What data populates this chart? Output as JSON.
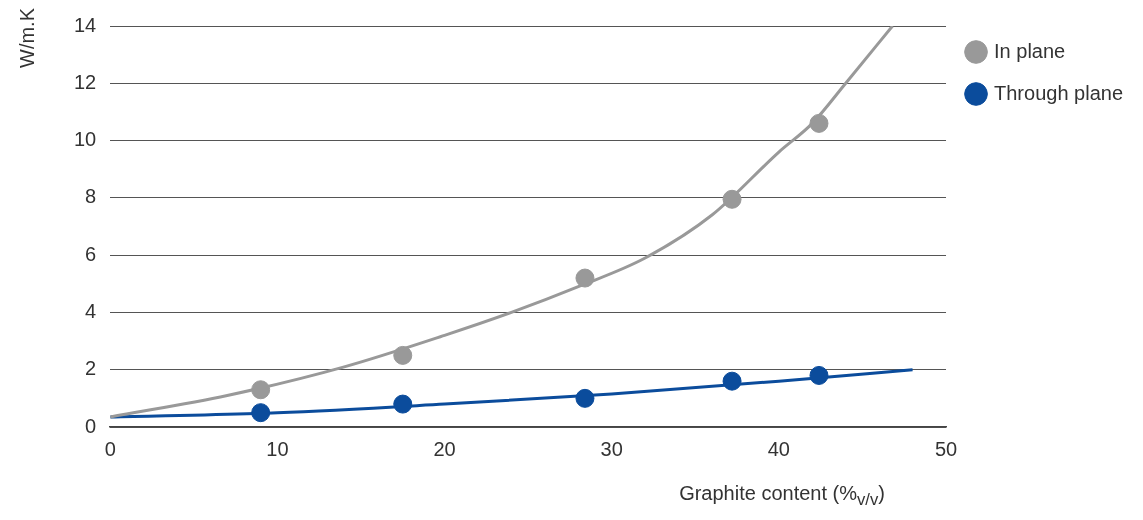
{
  "chart_data": {
    "type": "scatter",
    "xlabel": "Graphite content (%$_{v/v}$)",
    "ylabel": "W/m.K",
    "xlim": [
      0,
      50
    ],
    "xticks": [
      0,
      10,
      20,
      30,
      40,
      50
    ],
    "ylim": [
      0,
      14
    ],
    "yticks": [
      0,
      2,
      4,
      6,
      8,
      10,
      12,
      14
    ],
    "grid": "y",
    "legend": "top right",
    "series": [
      {
        "name": "In plane",
        "marker": "circle",
        "color": "#999999",
        "x": [
          9,
          17.5,
          28.4,
          37.2,
          42.4
        ],
        "values": [
          1.3,
          2.5,
          5.2,
          7.95,
          10.6
        ]
      },
      {
        "name": "Through plane",
        "marker": "circle",
        "color": "#0b4c9c",
        "x": [
          9,
          17.5,
          28.4,
          37.2,
          42.4
        ],
        "values": [
          0.5,
          0.8,
          1.0,
          1.6,
          1.8
        ]
      },
      {
        "type": "line",
        "marker": "none",
        "color": "#999999",
        "x": [
          0,
          7,
          14,
          20,
          24,
          28,
          32,
          36,
          40,
          42,
          44,
          46.8
        ],
        "values": [
          0.35,
          1.1,
          2.1,
          3.2,
          4.0,
          4.9,
          5.9,
          7.4,
          9.6,
          10.6,
          12.0,
          14.0
        ]
      },
      {
        "type": "line",
        "marker": "none",
        "color": "#0b4c9c",
        "x": [
          0,
          10,
          20,
          30,
          40,
          48
        ],
        "values": [
          0.35,
          0.5,
          0.8,
          1.15,
          1.6,
          2.0
        ]
      }
    ]
  }
}
